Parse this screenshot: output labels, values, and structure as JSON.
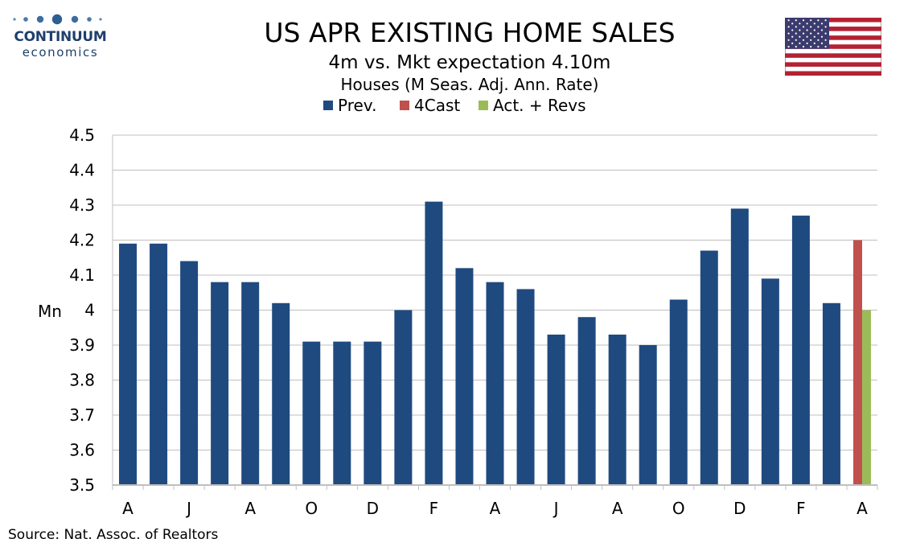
{
  "logo": {
    "name": "CONTINUUM",
    "sub": "economics"
  },
  "chart_data": {
    "type": "bar",
    "title": "US APR EXISTING HOME SALES",
    "subtitle": "4m vs. Mkt expectation 4.10m",
    "subtitle2": "Houses (M Seas. Adj. Ann. Rate)",
    "ylabel": "Mn",
    "ylim": [
      3.5,
      4.5
    ],
    "yticks": [
      3.5,
      3.6,
      3.7,
      3.8,
      3.9,
      4,
      4.1,
      4.2,
      4.3,
      4.4,
      4.5
    ],
    "ytick_labels": [
      "3.5",
      "3.6",
      "3.7",
      "3.8",
      "3.9",
      "4",
      "4.1",
      "4.2",
      "4.3",
      "4.4",
      "4.5"
    ],
    "xtick_labels": [
      "A",
      "J",
      "A",
      "O",
      "D",
      "F",
      "A",
      "J",
      "A",
      "O",
      "D",
      "F",
      "A"
    ],
    "legend_placement": "top-center",
    "grid": true,
    "series": [
      {
        "name": "Prev.",
        "color": "#1f4a80",
        "values": [
          4.19,
          4.19,
          4.14,
          4.08,
          4.08,
          4.02,
          3.91,
          3.91,
          3.91,
          4.0,
          4.31,
          4.12,
          4.08,
          4.06,
          3.93,
          3.98,
          3.93,
          3.9,
          4.03,
          4.17,
          4.29,
          4.09,
          4.27,
          4.02,
          null
        ]
      },
      {
        "name": "4Cast",
        "color": "#c0504d",
        "values": [
          null,
          null,
          null,
          null,
          null,
          null,
          null,
          null,
          null,
          null,
          null,
          null,
          null,
          null,
          null,
          null,
          null,
          null,
          null,
          null,
          null,
          null,
          null,
          null,
          4.2
        ]
      },
      {
        "name": "Act. + Revs",
        "color": "#9bbb59",
        "values": [
          null,
          null,
          null,
          null,
          null,
          null,
          null,
          null,
          null,
          null,
          null,
          null,
          null,
          null,
          null,
          null,
          null,
          null,
          null,
          null,
          null,
          null,
          null,
          null,
          4.0
        ]
      }
    ],
    "source": "Source: Nat. Assoc. of Realtors"
  }
}
